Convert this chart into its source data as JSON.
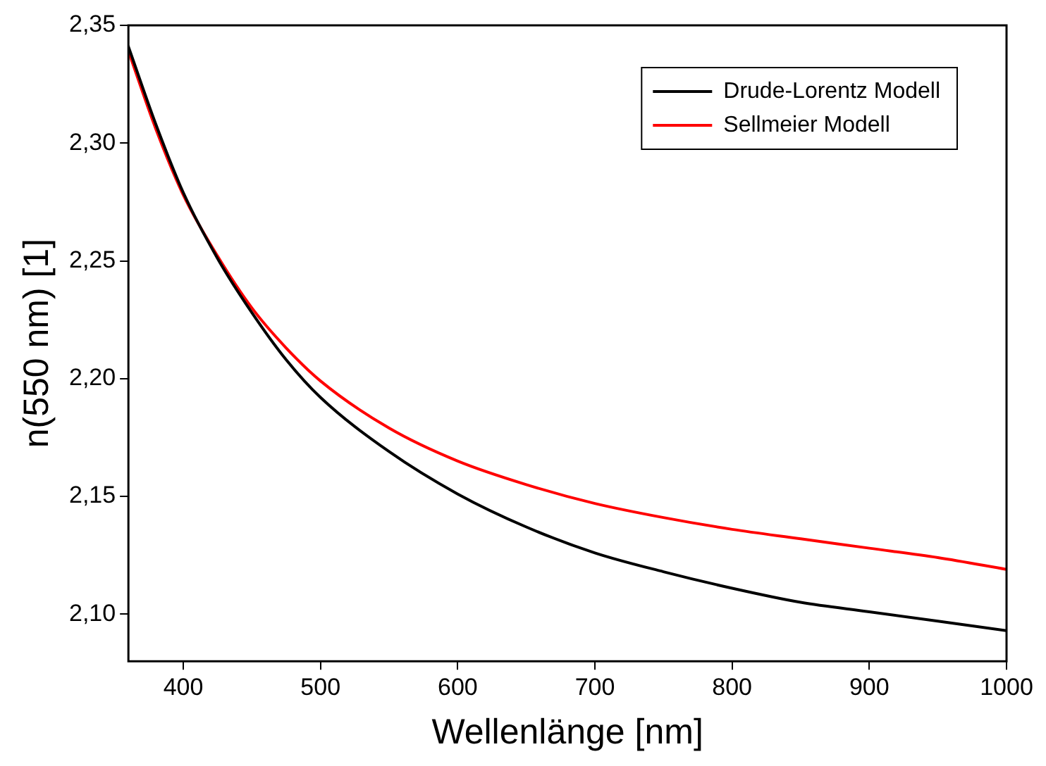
{
  "chart_data": {
    "type": "line",
    "xlabel": "Wellenlänge [nm]",
    "ylabel": "n(550 nm) [1]",
    "xlim": [
      360,
      1000
    ],
    "xticks": [
      400,
      500,
      600,
      700,
      800,
      900,
      1000
    ],
    "ylim": [
      2.08,
      2.35
    ],
    "yticks": [
      {
        "value": 2.1,
        "label": "2,10"
      },
      {
        "value": 2.15,
        "label": "2,15"
      },
      {
        "value": 2.2,
        "label": "2,20"
      },
      {
        "value": 2.25,
        "label": "2,25"
      },
      {
        "value": 2.3,
        "label": "2,30"
      },
      {
        "value": 2.35,
        "label": "2,35"
      }
    ],
    "grid": false,
    "legend": "top right",
    "marker": "none",
    "line_style": "solid",
    "x": [
      360,
      380,
      400,
      425,
      450,
      475,
      500,
      550,
      600,
      650,
      700,
      750,
      800,
      850,
      900,
      950,
      1000
    ],
    "series": [
      {
        "name": "Drude-Lorentz Modell",
        "color": "#000000",
        "values": [
          2.341,
          2.308,
          2.279,
          2.251,
          2.228,
          2.208,
          2.192,
          2.169,
          2.151,
          2.137,
          2.126,
          2.118,
          2.111,
          2.105,
          2.101,
          2.097,
          2.093
        ]
      },
      {
        "name": "Sellmeier Modell",
        "color": "#ff0000",
        "values": [
          2.339,
          2.306,
          2.278,
          2.252,
          2.23,
          2.213,
          2.199,
          2.179,
          2.165,
          2.155,
          2.147,
          2.141,
          2.136,
          2.132,
          2.128,
          2.124,
          2.119
        ]
      }
    ]
  }
}
